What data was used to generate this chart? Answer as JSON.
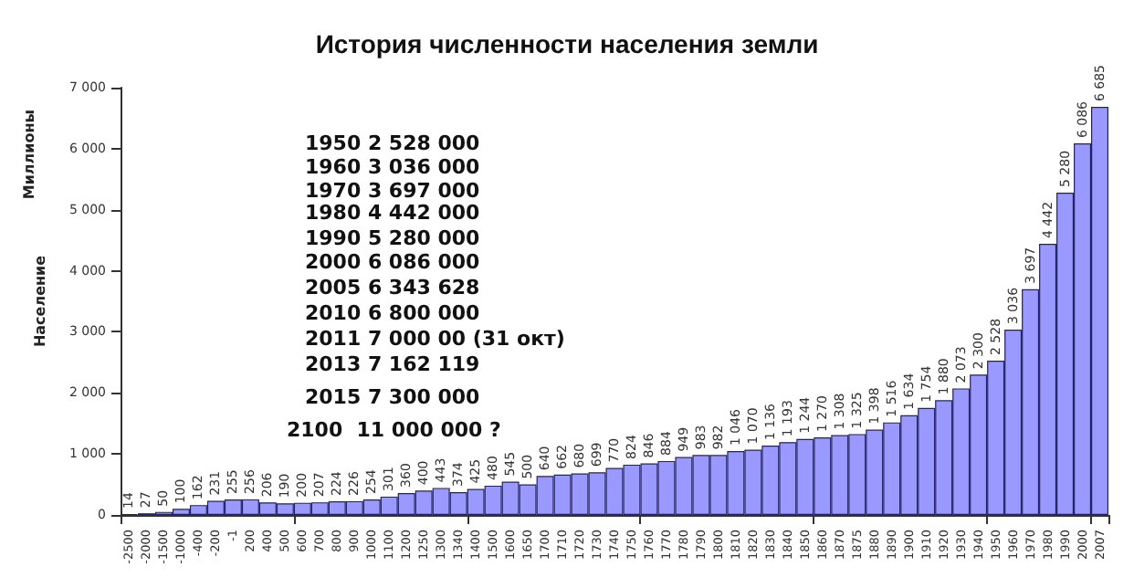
{
  "chart_data": {
    "type": "bar",
    "title": "История численности населения земли",
    "ylabel": "Население",
    "annotations": [
      "Миллионы",
      "1950 2 528 000",
      "1960 3 036 000",
      "1970 3 697 000",
      "1980 4 442 000",
      "1990 5 280 000",
      "2000 6 086 000",
      "2005 6 343 628",
      "2010 6 800 000",
      "2011 7 000 00 (31 окт)",
      "2013 7 162 119",
      "2015 7 300 000",
      "2100  11 000 000 ?"
    ],
    "categories": [
      "-2500",
      "-2000",
      "-1500",
      "-1000",
      "-400",
      "-200",
      "-1",
      "200",
      "400",
      "500",
      "600",
      "700",
      "800",
      "900",
      "1000",
      "1100",
      "1200",
      "1250",
      "1300",
      "1340",
      "1400",
      "1500",
      "1600",
      "1650",
      "1700",
      "1710",
      "1720",
      "1730",
      "1740",
      "1750",
      "1760",
      "1770",
      "1780",
      "1790",
      "1800",
      "1810",
      "1820",
      "1830",
      "1840",
      "1850",
      "1860",
      "1870",
      "1875",
      "1880",
      "1890",
      "1900",
      "1910",
      "1920",
      "1930",
      "1940",
      "1950",
      "1960",
      "1970",
      "1980",
      "1990",
      "2000",
      "2007"
    ],
    "values": [
      14,
      27,
      50,
      100,
      162,
      231,
      255,
      256,
      206,
      190,
      200,
      207,
      224,
      226,
      254,
      301,
      360,
      400,
      443,
      374,
      425,
      480,
      545,
      500,
      640,
      662,
      680,
      699,
      770,
      824,
      846,
      884,
      949,
      983,
      982,
      1046,
      1070,
      1136,
      1193,
      1244,
      1270,
      1308,
      1325,
      1398,
      1516,
      1634,
      1754,
      1880,
      2073,
      2300,
      2528,
      3036,
      3697,
      4442,
      5280,
      6086,
      6685
    ],
    "color": "#9999ff",
    "ylim": [
      0,
      7000
    ],
    "yticks": [
      0,
      {
        "value": 1000,
        "label": "1 000"
      },
      {
        "value": 2000,
        "label": "2 000"
      },
      {
        "value": 3000,
        "label": "3 000"
      },
      {
        "value": 4000,
        "label": "4 000"
      },
      {
        "value": 5000,
        "label": "5 000"
      },
      {
        "value": 6000,
        "label": "6 000"
      },
      {
        "value": 7000,
        "label": "7 000"
      }
    ],
    "data_labels": true,
    "grid": false
  }
}
